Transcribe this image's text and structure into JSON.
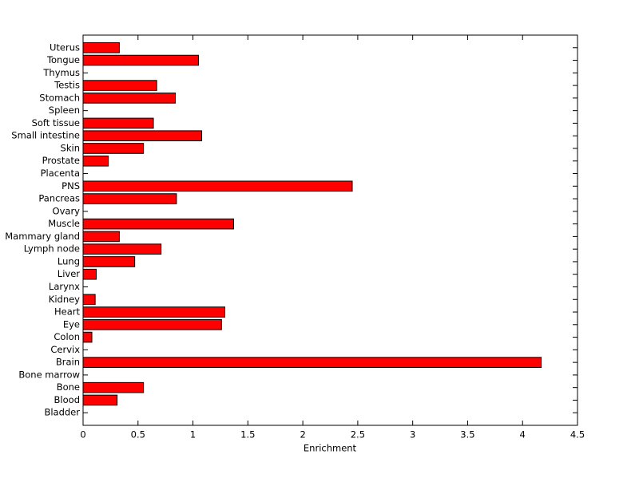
{
  "chart_data": {
    "type": "barh",
    "xlabel": "Enrichment",
    "categories": [
      "Bladder",
      "Blood",
      "Bone",
      "Bone marrow",
      "Brain",
      "Cervix",
      "Colon",
      "Eye",
      "Heart",
      "Kidney",
      "Larynx",
      "Liver",
      "Lung",
      "Lymph node",
      "Mammary gland",
      "Muscle",
      "Ovary",
      "Pancreas",
      "PNS",
      "Placenta",
      "Prostate",
      "Skin",
      "Small intestine",
      "Soft tissue",
      "Spleen",
      "Stomach",
      "Testis",
      "Thymus",
      "Tongue",
      "Uterus"
    ],
    "values": [
      0,
      0.31,
      0.55,
      0,
      4.17,
      0,
      0.08,
      1.26,
      1.29,
      0.11,
      0,
      0.12,
      0.47,
      0.71,
      0.33,
      1.37,
      0,
      0.85,
      2.45,
      0,
      0.23,
      0.55,
      1.08,
      0.64,
      0,
      0.84,
      0.67,
      0,
      1.05,
      0.33
    ],
    "color": "#ff0000",
    "xlim": [
      0,
      4.5
    ],
    "xticks": [
      0,
      0.5,
      1,
      1.5,
      2,
      2.5,
      3,
      3.5,
      4,
      4.5
    ]
  }
}
